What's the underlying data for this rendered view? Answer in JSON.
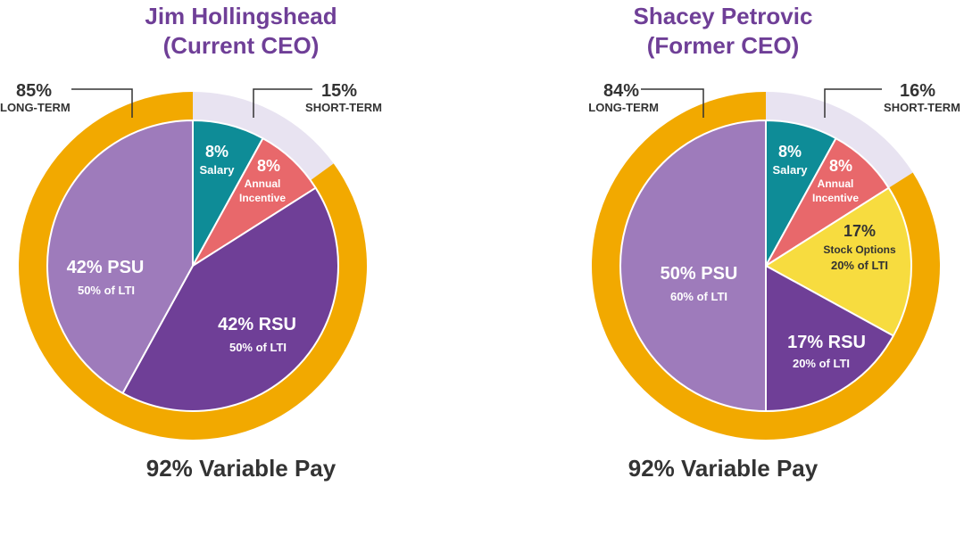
{
  "chart_data": [
    {
      "type": "pie",
      "title": "Jim Hollingshead",
      "subtitle": "(Current CEO)",
      "footer": "92% Variable Pay",
      "inner_slices": [
        {
          "key": "salary",
          "label": "Salary",
          "value_label": "8%",
          "value": 8,
          "color": "#0e8c97"
        },
        {
          "key": "annual",
          "label": "Annual Incentive",
          "label_lines": [
            "Annual",
            "Incentive"
          ],
          "value_label": "8%",
          "value": 8,
          "color": "#e8686b"
        },
        {
          "key": "rsu",
          "label": "RSU",
          "value_label": "42% RSU",
          "sub_label": "50% of LTI",
          "value": 42,
          "color": "#6f3f97"
        },
        {
          "key": "psu",
          "label": "PSU",
          "value_label": "42% PSU",
          "sub_label": "50% of LTI",
          "value": 42,
          "color": "#9e7bbb"
        }
      ],
      "outer_ring": [
        {
          "key": "short",
          "pct": "15%",
          "label": "SHORT-TERM",
          "value": 15,
          "color": "#e8e3f1"
        },
        {
          "key": "long",
          "pct": "85%",
          "label": "LONG-TERM",
          "value": 85,
          "color": "#f2a900"
        }
      ]
    },
    {
      "type": "pie",
      "title": "Shacey Petrovic",
      "subtitle": "(Former CEO)",
      "footer": "92% Variable Pay",
      "inner_slices": [
        {
          "key": "salary",
          "label": "Salary",
          "value_label": "8%",
          "value": 8,
          "color": "#0e8c97"
        },
        {
          "key": "annual",
          "label": "Annual Incentive",
          "label_lines": [
            "Annual",
            "Incentive"
          ],
          "value_label": "8%",
          "value": 8,
          "color": "#e8686b"
        },
        {
          "key": "options",
          "label": "Stock Options",
          "value_label": "17%",
          "sub_label": "20% of LTI",
          "value": 17,
          "color": "#f7dc3f"
        },
        {
          "key": "rsu",
          "label": "RSU",
          "value_label": "17% RSU",
          "sub_label": "20% of  LTI",
          "value": 17,
          "color": "#6f3f97"
        },
        {
          "key": "psu",
          "label": "PSU",
          "value_label": "50% PSU",
          "sub_label": "60% of LTI",
          "value": 50,
          "color": "#9e7bbb"
        }
      ],
      "outer_ring": [
        {
          "key": "short",
          "pct": "16%",
          "label": "SHORT-TERM",
          "value": 16,
          "color": "#e8e3f1"
        },
        {
          "key": "long",
          "pct": "84%",
          "label": "LONG-TERM",
          "value": 84,
          "color": "#f2a900"
        }
      ]
    }
  ]
}
